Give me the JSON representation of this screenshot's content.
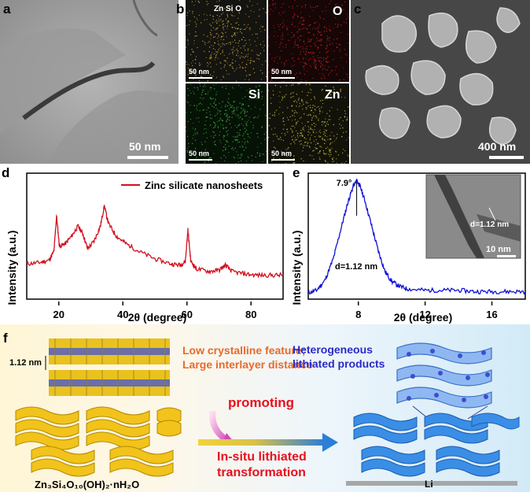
{
  "panels": {
    "a": {
      "label": "a",
      "scale": "50 nm"
    },
    "b": {
      "label": "b",
      "maps": [
        {
          "tag": "Zn Si O",
          "scale": "50 nm",
          "color": "#c8a040"
        },
        {
          "tag": "O",
          "scale": "50 nm",
          "color": "#c02020"
        },
        {
          "tag": "Si",
          "scale": "50 nm",
          "color": "#40b040"
        },
        {
          "tag": "Zn",
          "scale": "50 nm",
          "color": "#c8c040"
        }
      ]
    },
    "c": {
      "label": "c",
      "scale": "400 nm"
    },
    "d": {
      "label": "d"
    },
    "e": {
      "label": "e",
      "inset_d": "d=1.12 nm",
      "inset_scale": "10 nm"
    },
    "f": {
      "label": "f",
      "spacing": "1.12 nm",
      "feature_line1": "Low crystalline feature;",
      "feature_line2": "Large interlayer distance",
      "promoting": "promoting",
      "transform_line1": "In-situ lithiated",
      "transform_line2": "transformation",
      "products_line1": "Heterogeneous",
      "products_line2": "lithiated products",
      "formula": "Zn₃Si₄O₁₀(OH)₂·nH₂O",
      "li": "Li"
    }
  },
  "chart_data": [
    {
      "type": "line",
      "panel": "d",
      "xlabel": "2θ (degree)",
      "ylabel": "Intensity (a.u.)",
      "xlim": [
        10,
        90
      ],
      "xticks": [
        "20",
        "40",
        "60",
        "80"
      ],
      "color": "#d0101e",
      "series": [
        {
          "name": "Zinc silicate nanosheets",
          "x": [
            10,
            14,
            17,
            18.5,
            19.3,
            20.2,
            22,
            24,
            26,
            27.5,
            29,
            31,
            33,
            34.2,
            35.5,
            38,
            41,
            45,
            50,
            55,
            58,
            59.5,
            60.3,
            61.2,
            63,
            67,
            70,
            72,
            74,
            78,
            82,
            86,
            90
          ],
          "y": [
            0.28,
            0.29,
            0.31,
            0.38,
            0.66,
            0.42,
            0.44,
            0.5,
            0.58,
            0.52,
            0.4,
            0.46,
            0.58,
            0.74,
            0.6,
            0.5,
            0.44,
            0.38,
            0.32,
            0.28,
            0.27,
            0.3,
            0.55,
            0.3,
            0.24,
            0.22,
            0.23,
            0.27,
            0.22,
            0.2,
            0.19,
            0.19,
            0.19
          ]
        }
      ]
    },
    {
      "type": "line",
      "panel": "e",
      "xlabel": "2θ (degree)",
      "ylabel": "Intensity (a.u.)",
      "xlim": [
        5,
        18
      ],
      "xticks": [
        "8",
        "12",
        "16"
      ],
      "color": "#1010d8",
      "peak_label": "7.9°",
      "peak_x": 7.9,
      "annotation": "d=1.12 nm",
      "series": [
        {
          "x": [
            5,
            5.5,
            6,
            6.5,
            7,
            7.4,
            7.7,
            7.9,
            8.1,
            8.4,
            8.8,
            9.2,
            9.6,
            10,
            10.5,
            11,
            12,
            13,
            14,
            15,
            16,
            17,
            18
          ],
          "y": [
            0.05,
            0.07,
            0.15,
            0.32,
            0.58,
            0.78,
            0.9,
            0.94,
            0.9,
            0.78,
            0.58,
            0.38,
            0.22,
            0.14,
            0.1,
            0.08,
            0.07,
            0.07,
            0.07,
            0.06,
            0.06,
            0.06,
            0.06
          ]
        }
      ]
    }
  ]
}
